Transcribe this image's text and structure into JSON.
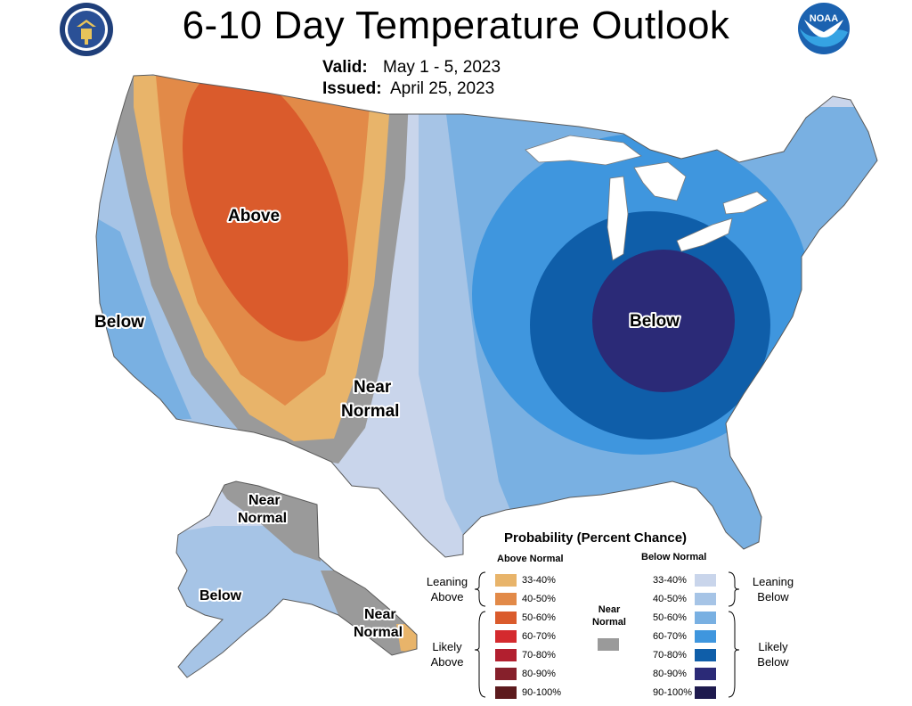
{
  "header": {
    "title": "6-10 Day Temperature Outlook",
    "valid_label": "Valid:",
    "valid_value": "May 1 - 5, 2023",
    "issued_label": "Issued:",
    "issued_value": "April 25, 2023"
  },
  "logos": {
    "left": "department-of-commerce-seal",
    "right": "noaa-logo",
    "right_text": "NOAA"
  },
  "colors": {
    "above_33_40": "#e8b46a",
    "above_40_50": "#e28a48",
    "above_50_60": "#da5b2c",
    "above_60_70": "#d42a2e",
    "above_70_80": "#b21f2f",
    "above_80_90": "#86202b",
    "above_90_100": "#5c1a1d",
    "near_normal": "#9a9a9a",
    "below_33_40": "#c9d5eb",
    "below_40_50": "#a6c4e6",
    "below_50_60": "#79b0e2",
    "below_60_70": "#3f96de",
    "below_70_80": "#0f5ea9",
    "below_80_90": "#2b2a77",
    "below_90_100": "#1e1a4e"
  },
  "map_labels": {
    "above": "Above",
    "below_west": "Below",
    "below_east": "Below",
    "near_normal_1": "Near",
    "near_normal_2": "Normal",
    "ak_near_1": "Near",
    "ak_near_2": "Normal",
    "ak_below": "Below",
    "ak_se_near_1": "Near",
    "ak_se_near_2": "Normal"
  },
  "legend": {
    "title": "Probability (Percent Chance)",
    "above_header": "Above Normal",
    "below_header": "Below Normal",
    "near_label_1": "Near",
    "near_label_2": "Normal",
    "leaning_above_1": "Leaning",
    "leaning_above_2": "Above",
    "likely_above_1": "Likely",
    "likely_above_2": "Above",
    "leaning_below_1": "Leaning",
    "leaning_below_2": "Below",
    "likely_below_1": "Likely",
    "likely_below_2": "Below",
    "above_items": [
      "33-40%",
      "40-50%",
      "50-60%",
      "60-70%",
      "70-80%",
      "80-90%",
      "90-100%"
    ],
    "below_items": [
      "33-40%",
      "40-50%",
      "50-60%",
      "60-70%",
      "70-80%",
      "80-90%",
      "90-100%"
    ]
  }
}
